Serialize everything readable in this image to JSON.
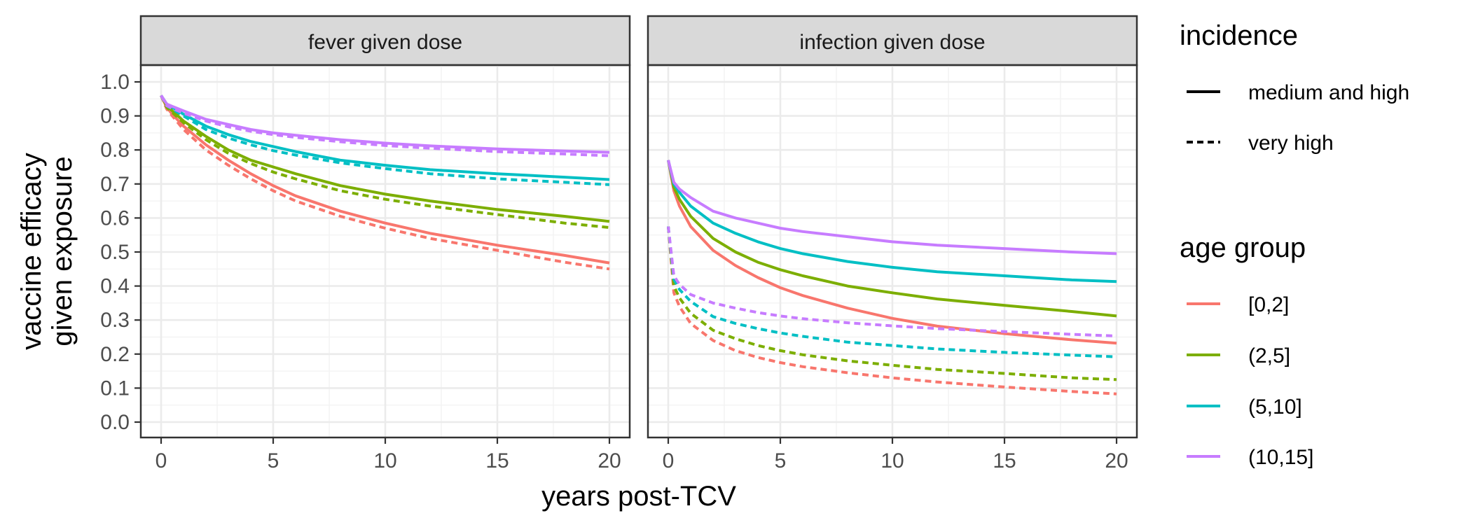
{
  "chart_data": {
    "type": "line",
    "xlabel": "years post-TCV",
    "ylabel_lines": [
      "vaccine efficacy",
      "given exposure"
    ],
    "xlim": [
      0,
      20
    ],
    "ylim": [
      0,
      1
    ],
    "x_ticks": [
      0,
      5,
      10,
      15,
      20
    ],
    "y_ticks": [
      "0.0",
      "0.1",
      "0.2",
      "0.3",
      "0.4",
      "0.5",
      "0.6",
      "0.7",
      "0.8",
      "0.9",
      "1.0"
    ],
    "grid": true,
    "legend_position": "right",
    "legend": {
      "incidence": {
        "title": "incidence",
        "entries": [
          {
            "label": "medium and high",
            "linetype": "solid"
          },
          {
            "label": "very high",
            "linetype": "dashed"
          }
        ]
      },
      "age_group": {
        "title": "age group",
        "entries": [
          {
            "label": "[0,2]",
            "color": "#f8766d"
          },
          {
            "label": "(2,5]",
            "color": "#7cae00"
          },
          {
            "label": "(5,10]",
            "color": "#00bfc4"
          },
          {
            "label": "(10,15]",
            "color": "#c77cff"
          }
        ]
      }
    },
    "x": [
      0,
      0.25,
      0.5,
      1,
      2,
      3,
      4,
      5,
      6,
      8,
      10,
      12,
      15,
      18,
      20
    ],
    "panels": [
      {
        "title": "fever given dose",
        "series": [
          {
            "age": "[0,2]",
            "incidence": "medium and high",
            "values": [
              0.96,
              0.925,
              0.905,
              0.87,
              0.815,
              0.77,
              0.73,
              0.695,
              0.665,
              0.62,
              0.585,
              0.555,
              0.52,
              0.49,
              0.468
            ]
          },
          {
            "age": "[0,2]",
            "incidence": "very high",
            "values": [
              0.96,
              0.92,
              0.9,
              0.86,
              0.8,
              0.755,
              0.715,
              0.68,
              0.65,
              0.605,
              0.57,
              0.54,
              0.505,
              0.47,
              0.45
            ]
          },
          {
            "age": "(2,5]",
            "incidence": "medium and high",
            "values": [
              0.96,
              0.93,
              0.915,
              0.885,
              0.84,
              0.8,
              0.77,
              0.75,
              0.73,
              0.695,
              0.67,
              0.65,
              0.625,
              0.605,
              0.59
            ]
          },
          {
            "age": "(2,5]",
            "incidence": "very high",
            "values": [
              0.96,
              0.925,
              0.91,
              0.88,
              0.83,
              0.79,
              0.76,
              0.735,
              0.715,
              0.68,
              0.655,
              0.635,
              0.61,
              0.585,
              0.572
            ]
          },
          {
            "age": "(5,10]",
            "incidence": "medium and high",
            "values": [
              0.96,
              0.935,
              0.925,
              0.905,
              0.87,
              0.845,
              0.825,
              0.81,
              0.795,
              0.77,
              0.755,
              0.742,
              0.73,
              0.72,
              0.713
            ]
          },
          {
            "age": "(5,10]",
            "incidence": "very high",
            "values": [
              0.96,
              0.93,
              0.92,
              0.9,
              0.86,
              0.835,
              0.815,
              0.798,
              0.785,
              0.762,
              0.745,
              0.73,
              0.715,
              0.705,
              0.698
            ]
          },
          {
            "age": "(10,15]",
            "incidence": "medium and high",
            "values": [
              0.96,
              0.935,
              0.928,
              0.915,
              0.89,
              0.875,
              0.86,
              0.85,
              0.843,
              0.83,
              0.82,
              0.812,
              0.803,
              0.797,
              0.793
            ]
          },
          {
            "age": "(10,15]",
            "incidence": "very high",
            "values": [
              0.96,
              0.93,
              0.922,
              0.908,
              0.885,
              0.868,
              0.855,
              0.845,
              0.837,
              0.824,
              0.813,
              0.805,
              0.795,
              0.788,
              0.783
            ]
          }
        ]
      },
      {
        "title": "infection given dose",
        "series": [
          {
            "age": "[0,2]",
            "incidence": "medium and high",
            "values": [
              0.77,
              0.68,
              0.635,
              0.575,
              0.505,
              0.46,
              0.425,
              0.395,
              0.372,
              0.335,
              0.305,
              0.282,
              0.26,
              0.242,
              0.232
            ]
          },
          {
            "age": "[0,2]",
            "incidence": "very high",
            "values": [
              0.575,
              0.38,
              0.34,
              0.29,
              0.24,
              0.21,
              0.19,
              0.175,
              0.163,
              0.145,
              0.13,
              0.118,
              0.103,
              0.09,
              0.083
            ]
          },
          {
            "age": "(2,5]",
            "incidence": "medium and high",
            "values": [
              0.77,
              0.69,
              0.655,
              0.605,
              0.54,
              0.5,
              0.47,
              0.448,
              0.43,
              0.4,
              0.38,
              0.362,
              0.343,
              0.325,
              0.312
            ]
          },
          {
            "age": "(2,5]",
            "incidence": "very high",
            "values": [
              0.575,
              0.4,
              0.365,
              0.32,
              0.27,
              0.245,
              0.225,
              0.21,
              0.198,
              0.18,
              0.167,
              0.155,
              0.143,
              0.13,
              0.125
            ]
          },
          {
            "age": "(5,10]",
            "incidence": "medium and high",
            "values": [
              0.77,
              0.7,
              0.675,
              0.635,
              0.585,
              0.555,
              0.53,
              0.51,
              0.495,
              0.472,
              0.455,
              0.442,
              0.43,
              0.418,
              0.413
            ]
          },
          {
            "age": "(5,10]",
            "incidence": "very high",
            "values": [
              0.575,
              0.42,
              0.39,
              0.355,
              0.31,
              0.29,
              0.275,
              0.262,
              0.252,
              0.235,
              0.225,
              0.215,
              0.205,
              0.197,
              0.192
            ]
          },
          {
            "age": "(10,15]",
            "incidence": "medium and high",
            "values": [
              0.77,
              0.705,
              0.685,
              0.66,
              0.62,
              0.6,
              0.585,
              0.57,
              0.56,
              0.545,
              0.53,
              0.52,
              0.51,
              0.5,
              0.495
            ]
          },
          {
            "age": "(10,15]",
            "incidence": "very high",
            "values": [
              0.575,
              0.43,
              0.405,
              0.375,
              0.35,
              0.335,
              0.322,
              0.312,
              0.304,
              0.292,
              0.283,
              0.275,
              0.266,
              0.258,
              0.253
            ]
          }
        ]
      }
    ]
  }
}
